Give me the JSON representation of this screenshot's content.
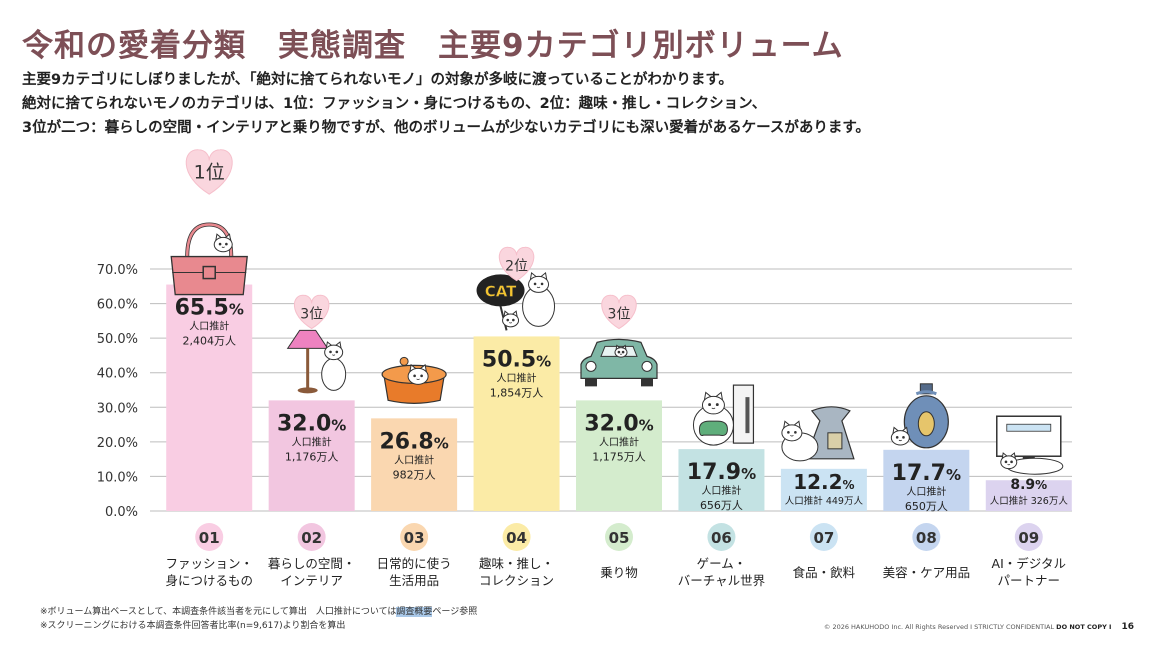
{
  "header": {
    "title": "令和の愛着分類　実態調査　主要9カテゴリ別ボリューム",
    "lines": [
      "主要9カテゴリにしぼりましたが、「絶対に捨てられないモノ」の対象が多岐に渡っていることがわかります。",
      "絶対に捨てられないモノのカテゴリは、1位：ファッション・身につけるもの、2位：趣味・推し・コレクション、",
      "3位が二つ：暮らしの空間・インテリアと乗り物ですが、他のボリュームが少ないカテゴリにも深い愛着があるケースがあります。"
    ]
  },
  "chart_data": {
    "type": "bar",
    "y_ticks": [
      "0.0%",
      "10.0%",
      "20.0%",
      "30.0%",
      "40.0%",
      "50.0%",
      "60.0%",
      "70.0%"
    ],
    "ylim": [
      0,
      70
    ],
    "grid": true,
    "unit": "%",
    "pop_label": "人口推計",
    "pop_unit": "万人",
    "categories": [
      {
        "num": "01",
        "label": [
          "ファッション・",
          "身につけるもの"
        ],
        "value": 65.5,
        "pop": "2,404",
        "rank": "1位",
        "color": "#f9cde3",
        "circle": "#f9cde3",
        "icon": "handbag-icon"
      },
      {
        "num": "02",
        "label": [
          "暮らしの空間・",
          "インテリア"
        ],
        "value": 32.0,
        "pop": "1,176",
        "rank": "3位",
        "color": "#f2c6e0",
        "circle": "#f2c6e0",
        "icon": "lamp-icon"
      },
      {
        "num": "03",
        "label": [
          "日常的に使う",
          "生活用品"
        ],
        "value": 26.8,
        "pop": "982",
        "rank": "",
        "color": "#fad7b0",
        "circle": "#fad7b0",
        "icon": "pot-icon"
      },
      {
        "num": "04",
        "label": [
          "趣味・推し・",
          "コレクション"
        ],
        "value": 50.5,
        "pop": "1,854",
        "rank": "2位",
        "color": "#fbeba6",
        "circle": "#fbeba6",
        "icon": "cat-fan-icon",
        "icon_text": "CAT"
      },
      {
        "num": "05",
        "label": [
          "乗り物"
        ],
        "value": 32.0,
        "pop": "1,175",
        "rank": "3位",
        "color": "#d4eccd",
        "circle": "#d4eccd",
        "icon": "car-icon"
      },
      {
        "num": "06",
        "label": [
          "ゲーム・",
          "バーチャル世界"
        ],
        "value": 17.9,
        "pop": "656",
        "rank": "",
        "color": "#c3e2e3",
        "circle": "#c3e2e3",
        "icon": "game-console-icon"
      },
      {
        "num": "07",
        "label": [
          "食品・飲料"
        ],
        "value": 12.2,
        "pop": "449",
        "rank": "",
        "color": "#cbe3f3",
        "circle": "#cbe3f3",
        "icon": "food-bag-icon"
      },
      {
        "num": "08",
        "label": [
          "美容・ケア用品"
        ],
        "value": 17.7,
        "pop": "650",
        "rank": "",
        "color": "#c4d5ef",
        "circle": "#c4d5ef",
        "icon": "perfume-icon"
      },
      {
        "num": "09",
        "label": [
          "AI・デジタル",
          "パートナー"
        ],
        "value": 8.9,
        "pop": "326",
        "rank": "",
        "color": "#dcd3ef",
        "circle": "#dcd3ef",
        "icon": "monitor-icon"
      }
    ]
  },
  "footer": {
    "note1_a": "※ボリューム算出ベースとして、本調査条件該当者を元にして算出　人口推計については",
    "note1_b": "調査概要",
    "note1_c": "ページ参照",
    "note2": "※スクリーニングにおける本調査条件回答者比率(n=9,617)より割合を算出",
    "copyright": "© 2026 HAKUHODO Inc. All Rights Reserved I STRICTLY CONFIDENTIAL ",
    "do_not_copy": "DO NOT COPY I",
    "page_number": "16"
  }
}
